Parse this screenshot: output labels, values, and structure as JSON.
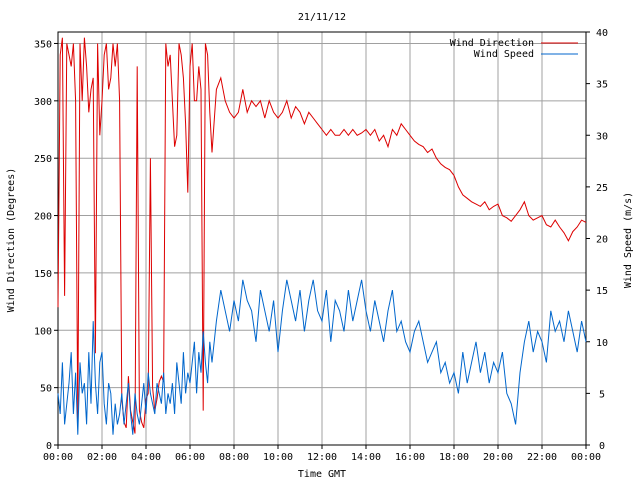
{
  "chart_data": {
    "type": "line",
    "title": "21/11/12",
    "xlabel": "Time GMT",
    "ylabel_left": "Wind Direction (Degrees)",
    "ylabel_right": "Wind Speed (m/s)",
    "x_range": [
      0,
      24
    ],
    "x_ticks": [
      "00:00",
      "02:00",
      "04:00",
      "06:00",
      "08:00",
      "10:00",
      "12:00",
      "14:00",
      "16:00",
      "18:00",
      "20:00",
      "22:00",
      "00:00"
    ],
    "y_left_range": [
      0,
      360
    ],
    "y_left_ticks": [
      "0",
      "50",
      "100",
      "150",
      "200",
      "250",
      "300",
      "350"
    ],
    "y_right_range": [
      0,
      40
    ],
    "y_right_ticks": [
      "0",
      "5",
      "10",
      "15",
      "20",
      "25",
      "30",
      "35",
      "40"
    ],
    "grid": true,
    "legend_placement": "top-right",
    "series": [
      {
        "name": "Wind Direction",
        "axis": "left",
        "color": "#dd0000",
        "x": [
          0,
          0.1,
          0.2,
          0.3,
          0.4,
          0.5,
          0.6,
          0.7,
          0.8,
          0.9,
          1.0,
          1.1,
          1.2,
          1.3,
          1.4,
          1.5,
          1.6,
          1.7,
          1.8,
          1.9,
          2.0,
          2.1,
          2.2,
          2.3,
          2.4,
          2.5,
          2.6,
          2.7,
          2.8,
          2.9,
          3.0,
          3.1,
          3.2,
          3.3,
          3.4,
          3.5,
          3.6,
          3.7,
          3.8,
          3.9,
          4.0,
          4.1,
          4.2,
          4.3,
          4.4,
          4.5,
          4.6,
          4.7,
          4.8,
          4.9,
          5.0,
          5.1,
          5.2,
          5.3,
          5.4,
          5.5,
          5.6,
          5.7,
          5.8,
          5.9,
          6.0,
          6.1,
          6.2,
          6.3,
          6.4,
          6.5,
          6.6,
          6.7,
          6.8,
          6.9,
          7.0,
          7.2,
          7.4,
          7.6,
          7.8,
          8.0,
          8.2,
          8.4,
          8.6,
          8.8,
          9.0,
          9.2,
          9.4,
          9.6,
          9.8,
          10.0,
          10.2,
          10.4,
          10.6,
          10.8,
          11.0,
          11.2,
          11.4,
          11.6,
          11.8,
          12.0,
          12.2,
          12.4,
          12.6,
          12.8,
          13.0,
          13.2,
          13.4,
          13.6,
          13.8,
          14.0,
          14.2,
          14.4,
          14.6,
          14.8,
          15.0,
          15.2,
          15.4,
          15.6,
          15.8,
          16.0,
          16.2,
          16.4,
          16.6,
          16.8,
          17.0,
          17.2,
          17.4,
          17.6,
          17.8,
          18.0,
          18.2,
          18.4,
          18.6,
          18.8,
          19.0,
          19.2,
          19.4,
          19.6,
          19.8,
          20.0,
          20.2,
          20.4,
          20.6,
          20.8,
          21.0,
          21.2,
          21.4,
          21.6,
          21.8,
          22.0,
          22.2,
          22.4,
          22.6,
          22.8,
          23.0,
          23.2,
          23.4,
          23.6,
          23.8,
          24.0
        ],
        "y": [
          120,
          340,
          355,
          130,
          350,
          340,
          330,
          350,
          300,
          20,
          350,
          300,
          355,
          330,
          290,
          310,
          320,
          80,
          350,
          270,
          300,
          340,
          350,
          310,
          320,
          350,
          330,
          350,
          300,
          40,
          20,
          15,
          60,
          30,
          20,
          10,
          330,
          30,
          20,
          15,
          40,
          45,
          250,
          50,
          30,
          40,
          55,
          60,
          55,
          350,
          330,
          340,
          300,
          260,
          270,
          350,
          340,
          320,
          280,
          220,
          330,
          350,
          300,
          300,
          330,
          310,
          30,
          350,
          340,
          290,
          255,
          310,
          320,
          300,
          290,
          285,
          290,
          310,
          290,
          300,
          295,
          300,
          285,
          300,
          290,
          285,
          290,
          300,
          285,
          295,
          290,
          280,
          290,
          285,
          280,
          275,
          270,
          275,
          270,
          270,
          275,
          270,
          275,
          270,
          272,
          275,
          270,
          275,
          265,
          270,
          260,
          275,
          270,
          280,
          275,
          270,
          265,
          262,
          260,
          255,
          258,
          250,
          245,
          242,
          240,
          235,
          225,
          218,
          215,
          212,
          210,
          208,
          212,
          205,
          208,
          210,
          200,
          198,
          195,
          200,
          205,
          212,
          200,
          196,
          198,
          200,
          192,
          190,
          196,
          190,
          185,
          178,
          186,
          190,
          196,
          194
        ]
      },
      {
        "name": "Wind Speed",
        "axis": "right",
        "color": "#0066cc",
        "x": [
          0,
          0.1,
          0.2,
          0.3,
          0.4,
          0.5,
          0.6,
          0.7,
          0.8,
          0.9,
          1.0,
          1.1,
          1.2,
          1.3,
          1.4,
          1.5,
          1.6,
          1.7,
          1.8,
          1.9,
          2.0,
          2.1,
          2.2,
          2.3,
          2.4,
          2.5,
          2.6,
          2.7,
          2.8,
          2.9,
          3.0,
          3.1,
          3.2,
          3.3,
          3.4,
          3.5,
          3.6,
          3.7,
          3.8,
          3.9,
          4.0,
          4.1,
          4.2,
          4.3,
          4.4,
          4.5,
          4.6,
          4.7,
          4.8,
          4.9,
          5.0,
          5.1,
          5.2,
          5.3,
          5.4,
          5.5,
          5.6,
          5.7,
          5.8,
          5.9,
          6.0,
          6.1,
          6.2,
          6.3,
          6.4,
          6.5,
          6.6,
          6.7,
          6.8,
          6.9,
          7.0,
          7.2,
          7.4,
          7.6,
          7.8,
          8.0,
          8.2,
          8.4,
          8.6,
          8.8,
          9.0,
          9.2,
          9.4,
          9.6,
          9.8,
          10.0,
          10.2,
          10.4,
          10.6,
          10.8,
          11.0,
          11.2,
          11.4,
          11.6,
          11.8,
          12.0,
          12.2,
          12.4,
          12.6,
          12.8,
          13.0,
          13.2,
          13.4,
          13.6,
          13.8,
          14.0,
          14.2,
          14.4,
          14.6,
          14.8,
          15.0,
          15.2,
          15.4,
          15.6,
          15.8,
          16.0,
          16.2,
          16.4,
          16.6,
          16.8,
          17.0,
          17.2,
          17.4,
          17.6,
          17.8,
          18.0,
          18.2,
          18.4,
          18.6,
          18.8,
          19.0,
          19.2,
          19.4,
          19.6,
          19.8,
          20.0,
          20.2,
          20.4,
          20.6,
          20.8,
          21.0,
          21.2,
          21.4,
          21.6,
          21.8,
          22.0,
          22.2,
          22.4,
          22.6,
          22.8,
          23.0,
          23.2,
          23.4,
          23.6,
          23.8,
          24.0
        ],
        "y": [
          5,
          3,
          8,
          2,
          4,
          6,
          9,
          3,
          7,
          1,
          8,
          5,
          6,
          2,
          9,
          4,
          12,
          6,
          3,
          8,
          9,
          4,
          2,
          6,
          5,
          1,
          4,
          2,
          3,
          5,
          2,
          4,
          6,
          3,
          1,
          5,
          3,
          2,
          4,
          6,
          3,
          7,
          5,
          4,
          3,
          6,
          5,
          4,
          7,
          3,
          5,
          4,
          6,
          3,
          8,
          6,
          4,
          9,
          5,
          7,
          6,
          8,
          10,
          5,
          9,
          7,
          11,
          8,
          6,
          10,
          8,
          12,
          15,
          13,
          11,
          14,
          12,
          16,
          14,
          13,
          10,
          15,
          13,
          11,
          14,
          9,
          13,
          16,
          14,
          12,
          15,
          11,
          14,
          16,
          13,
          12,
          15,
          10,
          14,
          13,
          11,
          15,
          12,
          14,
          16,
          13,
          11,
          14,
          12,
          10,
          13,
          15,
          11,
          12,
          10,
          9,
          11,
          12,
          10,
          8,
          9,
          10,
          7,
          8,
          6,
          7,
          5,
          9,
          6,
          8,
          10,
          7,
          9,
          6,
          8,
          7,
          9,
          5,
          4,
          2,
          7,
          10,
          12,
          9,
          11,
          10,
          8,
          13,
          11,
          12,
          10,
          13,
          11,
          9,
          12,
          10
        ]
      }
    ]
  }
}
